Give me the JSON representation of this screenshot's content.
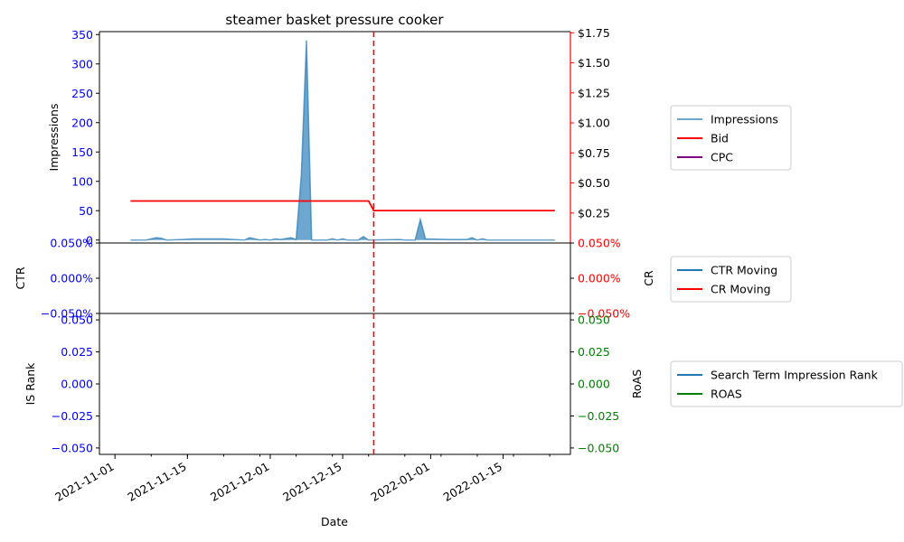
{
  "chart_data": [
    {
      "type": "area",
      "title": "steamer basket pressure cooker",
      "ylabel_left": "Impressions",
      "ylim_left": [
        -5,
        355
      ],
      "yticks_left": [
        0,
        50,
        100,
        150,
        200,
        250,
        300,
        350
      ],
      "ylim_right": [
        0.0,
        1.76
      ],
      "yticks_right": [
        "$0.25",
        "$0.50",
        "$0.75",
        "$1.00",
        "$1.25",
        "$1.50",
        "$1.75"
      ],
      "colors": {
        "impressions": "#1f77b4",
        "bid": "#ff0000",
        "cpc": "#800080",
        "left_ticks": "#0000ff",
        "right_ticks": "#ff0000"
      },
      "series": [
        {
          "name": "Impressions",
          "points": [
            [
              "2021-11-04",
              0
            ],
            [
              "2021-11-07",
              0
            ],
            [
              "2021-11-09",
              4
            ],
            [
              "2021-11-10",
              3
            ],
            [
              "2021-11-11",
              0
            ],
            [
              "2021-11-14",
              1
            ],
            [
              "2021-11-16",
              2
            ],
            [
              "2021-11-22",
              2
            ],
            [
              "2021-11-26",
              0
            ],
            [
              "2021-11-27",
              4
            ],
            [
              "2021-11-29",
              0
            ],
            [
              "2021-11-30",
              1
            ],
            [
              "2021-12-01",
              0
            ],
            [
              "2021-12-02",
              2
            ],
            [
              "2021-12-03",
              1
            ],
            [
              "2021-12-05",
              4
            ],
            [
              "2021-12-06",
              1
            ],
            [
              "2021-12-07",
              110
            ],
            [
              "2021-12-08",
              340
            ],
            [
              "2021-12-09",
              0
            ],
            [
              "2021-12-12",
              0
            ],
            [
              "2021-12-13",
              2
            ],
            [
              "2021-12-14",
              0
            ],
            [
              "2021-12-15",
              2
            ],
            [
              "2021-12-16",
              0
            ],
            [
              "2021-12-18",
              0
            ],
            [
              "2021-12-19",
              6
            ],
            [
              "2021-12-20",
              0
            ],
            [
              "2021-12-26",
              1
            ],
            [
              "2021-12-27",
              0
            ],
            [
              "2021-12-29",
              0
            ],
            [
              "2021-12-30",
              35
            ],
            [
              "2021-12-31",
              2
            ],
            [
              "2022-01-05",
              1
            ],
            [
              "2022-01-08",
              1
            ],
            [
              "2022-01-09",
              4
            ],
            [
              "2022-01-10",
              0
            ],
            [
              "2022-01-11",
              2
            ],
            [
              "2022-01-12",
              0
            ],
            [
              "2022-01-16",
              0
            ],
            [
              "2022-01-25",
              0
            ]
          ]
        },
        {
          "name": "Bid",
          "axis": "right",
          "points": [
            [
              "2021-11-04",
              0.35
            ],
            [
              "2021-12-20",
              0.35
            ],
            [
              "2021-12-21",
              0.27
            ],
            [
              "2022-01-25",
              0.27
            ]
          ]
        },
        {
          "name": "CPC",
          "axis": "right",
          "points": []
        }
      ],
      "vline": {
        "x": "2021-12-21",
        "style": "dashed",
        "color": "#ff0000"
      },
      "legend": [
        "Impressions",
        "Bid",
        "CPC"
      ]
    },
    {
      "type": "line",
      "ylabel_left": "CTR",
      "ylabel_right": "CR",
      "ylim": [
        -0.0005,
        0.0005
      ],
      "yticks_left": [
        "0.050%",
        "0.000%",
        "−0.050%"
      ],
      "yticks_right": [
        "0.050%",
        "0.000%",
        "−0.050%"
      ],
      "colors": {
        "ctr": "#1f77b4",
        "cr": "#ff0000"
      },
      "series": [
        {
          "name": "CTR Moving",
          "points": []
        },
        {
          "name": "CR Moving",
          "points": []
        }
      ],
      "legend": [
        "CTR Moving",
        "CR Moving"
      ]
    },
    {
      "type": "line",
      "ylabel_left": "IS Rank",
      "ylabel_right": "RoAS",
      "xlabel": "Date",
      "ylim": [
        -0.055,
        0.055
      ],
      "yticks_left": [
        "0.050",
        "0.025",
        "0.000",
        "−0.025",
        "−0.050"
      ],
      "yticks_right": [
        "0.050",
        "0.025",
        "0.000",
        "−0.025",
        "−0.050"
      ],
      "xticks": [
        "2021-11-01",
        "2021-11-15",
        "2021-12-01",
        "2021-12-15",
        "2022-01-01",
        "2022-01-15"
      ],
      "colors": {
        "rank": "#1f77b4",
        "roas": "#008000"
      },
      "series": [
        {
          "name": "Search Term Impression Rank",
          "points": []
        },
        {
          "name": "ROAS",
          "points": []
        }
      ],
      "legend": [
        "Search Term Impression Rank",
        "ROAS"
      ]
    }
  ]
}
